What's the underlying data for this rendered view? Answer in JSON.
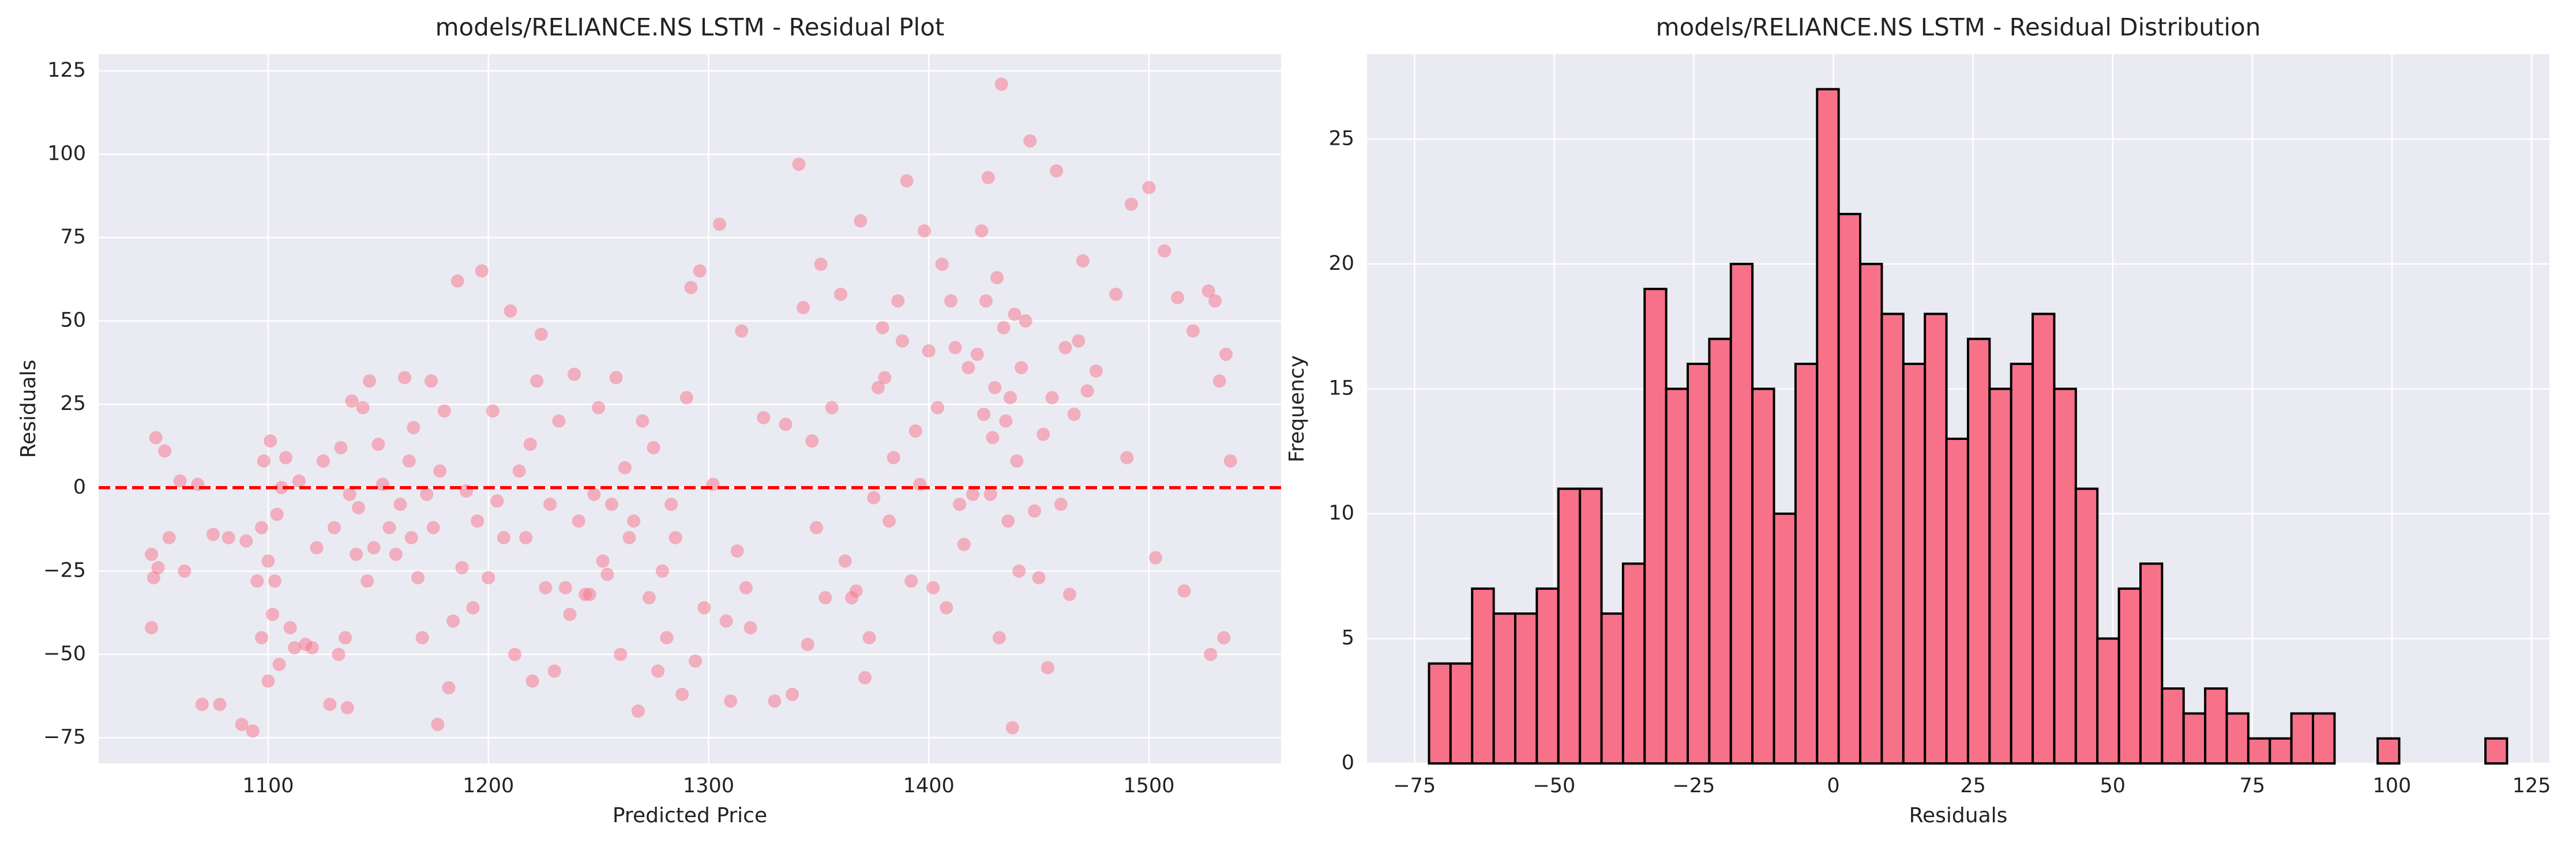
{
  "chart_data": [
    {
      "type": "scatter",
      "title": "models/RELIANCE.NS LSTM - Residual Plot",
      "x_label": "Predicted Price",
      "y_label": "Residuals",
      "color": "#f77189",
      "alpha": 0.5,
      "grid": true,
      "xlim": [
        1023,
        1560
      ],
      "ylim": [
        -82.7,
        130
      ],
      "xticks": [
        1100,
        1200,
        1300,
        1400,
        1500
      ],
      "yticks": [
        {
          "value": -75,
          "label": "−75"
        },
        {
          "value": -50,
          "label": "−50"
        },
        {
          "value": -25,
          "label": "−25"
        },
        0,
        25,
        50,
        75,
        100,
        125
      ],
      "reference_line": {
        "y": 0,
        "color": "#ff0000"
      },
      "x": [
        1047,
        1048,
        1047,
        1049,
        1050,
        1053,
        1055,
        1060,
        1062,
        1068,
        1070,
        1075,
        1078,
        1082,
        1088,
        1090,
        1093,
        1095,
        1097,
        1097,
        1098,
        1100,
        1100,
        1101,
        1102,
        1103,
        1104,
        1105,
        1106,
        1108,
        1110,
        1112,
        1114,
        1117,
        1120,
        1122,
        1125,
        1128,
        1130,
        1132,
        1133,
        1135,
        1136,
        1137,
        1138,
        1140,
        1141,
        1143,
        1145,
        1146,
        1148,
        1150,
        1152,
        1155,
        1158,
        1160,
        1162,
        1164,
        1165,
        1166,
        1168,
        1170,
        1172,
        1174,
        1175,
        1177,
        1178,
        1180,
        1182,
        1184,
        1186,
        1188,
        1190,
        1193,
        1195,
        1197,
        1200,
        1202,
        1204,
        1207,
        1210,
        1212,
        1214,
        1217,
        1219,
        1220,
        1222,
        1224,
        1226,
        1228,
        1230,
        1232,
        1235,
        1237,
        1239,
        1241,
        1244,
        1246,
        1248,
        1250,
        1252,
        1254,
        1256,
        1258,
        1260,
        1262,
        1264,
        1266,
        1268,
        1270,
        1273,
        1275,
        1277,
        1279,
        1281,
        1283,
        1285,
        1288,
        1290,
        1292,
        1294,
        1296,
        1298,
        1302,
        1305,
        1308,
        1310,
        1313,
        1315,
        1317,
        1319,
        1325,
        1330,
        1335,
        1338,
        1341,
        1343,
        1345,
        1347,
        1349,
        1351,
        1353,
        1356,
        1360,
        1362,
        1365,
        1367,
        1369,
        1371,
        1373,
        1375,
        1377,
        1379,
        1380,
        1382,
        1384,
        1386,
        1388,
        1390,
        1392,
        1394,
        1396,
        1398,
        1400,
        1402,
        1404,
        1406,
        1408,
        1410,
        1412,
        1414,
        1416,
        1418,
        1420,
        1422,
        1424,
        1425,
        1426,
        1427,
        1428,
        1429,
        1430,
        1431,
        1432,
        1433,
        1434,
        1435,
        1436,
        1437,
        1438,
        1439,
        1440,
        1441,
        1442,
        1444,
        1446,
        1448,
        1450,
        1452,
        1454,
        1456,
        1458,
        1460,
        1462,
        1464,
        1466,
        1468,
        1470,
        1472,
        1476,
        1485,
        1490,
        1492,
        1500,
        1503,
        1507,
        1513,
        1516,
        1520,
        1527,
        1528,
        1530,
        1532,
        1534,
        1535,
        1537
      ],
      "y": [
        -20,
        -27,
        -42,
        15,
        -24,
        11,
        -15,
        2,
        -25,
        1,
        -65,
        -14,
        -65,
        -15,
        -71,
        -16,
        -73,
        -28,
        -45,
        -12,
        8,
        -58,
        -22,
        14,
        -38,
        -28,
        -8,
        -53,
        0,
        9,
        -42,
        -48,
        2,
        -47,
        -48,
        -18,
        8,
        -65,
        -12,
        -50,
        12,
        -45,
        -66,
        -2,
        26,
        -20,
        -6,
        24,
        -28,
        32,
        -18,
        13,
        1,
        -12,
        -20,
        -5,
        33,
        8,
        -15,
        18,
        -27,
        -45,
        -2,
        32,
        -12,
        -71,
        5,
        23,
        -60,
        -40,
        62,
        -24,
        -1,
        -36,
        -10,
        65,
        -27,
        23,
        -4,
        -15,
        53,
        -50,
        5,
        -15,
        13,
        -58,
        32,
        46,
        -30,
        -5,
        -55,
        20,
        -30,
        -38,
        34,
        -10,
        -32,
        -32,
        -2,
        24,
        -22,
        -26,
        -5,
        33,
        -50,
        6,
        -15,
        -10,
        -67,
        20,
        -33,
        12,
        -55,
        -25,
        -45,
        -5,
        -15,
        -62,
        27,
        60,
        -52,
        65,
        -36,
        1,
        79,
        -40,
        -64,
        -19,
        47,
        -30,
        -42,
        21,
        -64,
        19,
        -62,
        97,
        54,
        -47,
        14,
        -12,
        67,
        -33,
        24,
        58,
        -22,
        -33,
        -31,
        80,
        -57,
        -45,
        -3,
        30,
        48,
        33,
        -10,
        9,
        56,
        44,
        92,
        -28,
        17,
        1,
        77,
        41,
        -30,
        24,
        67,
        -36,
        56,
        42,
        -5,
        -17,
        36,
        -2,
        40,
        77,
        22,
        56,
        93,
        -2,
        15,
        30,
        63,
        -45,
        121,
        48,
        20,
        -10,
        27,
        -72,
        52,
        8,
        -25,
        36,
        50,
        104,
        -7,
        -27,
        16,
        -54,
        27,
        95,
        -5,
        42,
        -32,
        22,
        44,
        68,
        29,
        35,
        58,
        9,
        85,
        90,
        -21,
        71,
        57,
        -31,
        47,
        59,
        -50,
        56,
        32,
        -45,
        40,
        8
      ]
    },
    {
      "type": "histogram",
      "title": "models/RELIANCE.NS LSTM - Residual Distribution",
      "x_label": "Residuals",
      "y_label": "Frequency",
      "color": "#f77189",
      "edgecolor": "#000000",
      "grid": true,
      "xlim": [
        -83.5,
        128.2
      ],
      "ylim": [
        0,
        28.4
      ],
      "xticks": [
        {
          "value": -75,
          "label": "−75"
        },
        {
          "value": -50,
          "label": "−50"
        },
        {
          "value": -25,
          "label": "−25"
        },
        0,
        25,
        50,
        75,
        100,
        125
      ],
      "yticks": [
        0,
        5,
        10,
        15,
        20,
        25
      ],
      "bins": [
        -72.4,
        -68.54,
        -64.68,
        -60.82,
        -56.96,
        -53.1,
        -49.24,
        -45.38,
        -41.52,
        -37.66,
        -33.8,
        -29.94,
        -26.08,
        -22.22,
        -18.36,
        -14.5,
        -10.64,
        -6.78,
        -2.92,
        0.94,
        4.8,
        8.66,
        12.52,
        16.38,
        20.24,
        24.1,
        27.96,
        31.82,
        35.68,
        39.54,
        43.4,
        47.26,
        51.12,
        54.98,
        58.84,
        62.7,
        66.56,
        70.42,
        74.28,
        78.14,
        82.0,
        85.86,
        89.72,
        93.58,
        97.44,
        101.3,
        105.16,
        109.02,
        112.88,
        116.74,
        120.6
      ],
      "values": [
        4,
        4,
        7,
        6,
        6,
        7,
        11,
        11,
        6,
        8,
        19,
        15,
        16,
        17,
        20,
        15,
        10,
        16,
        27,
        22,
        20,
        18,
        16,
        18,
        13,
        17,
        15,
        16,
        18,
        15,
        11,
        5,
        7,
        8,
        3,
        2,
        3,
        2,
        1,
        1,
        2,
        2,
        0,
        0,
        1,
        0,
        0,
        0,
        0,
        1
      ]
    }
  ]
}
